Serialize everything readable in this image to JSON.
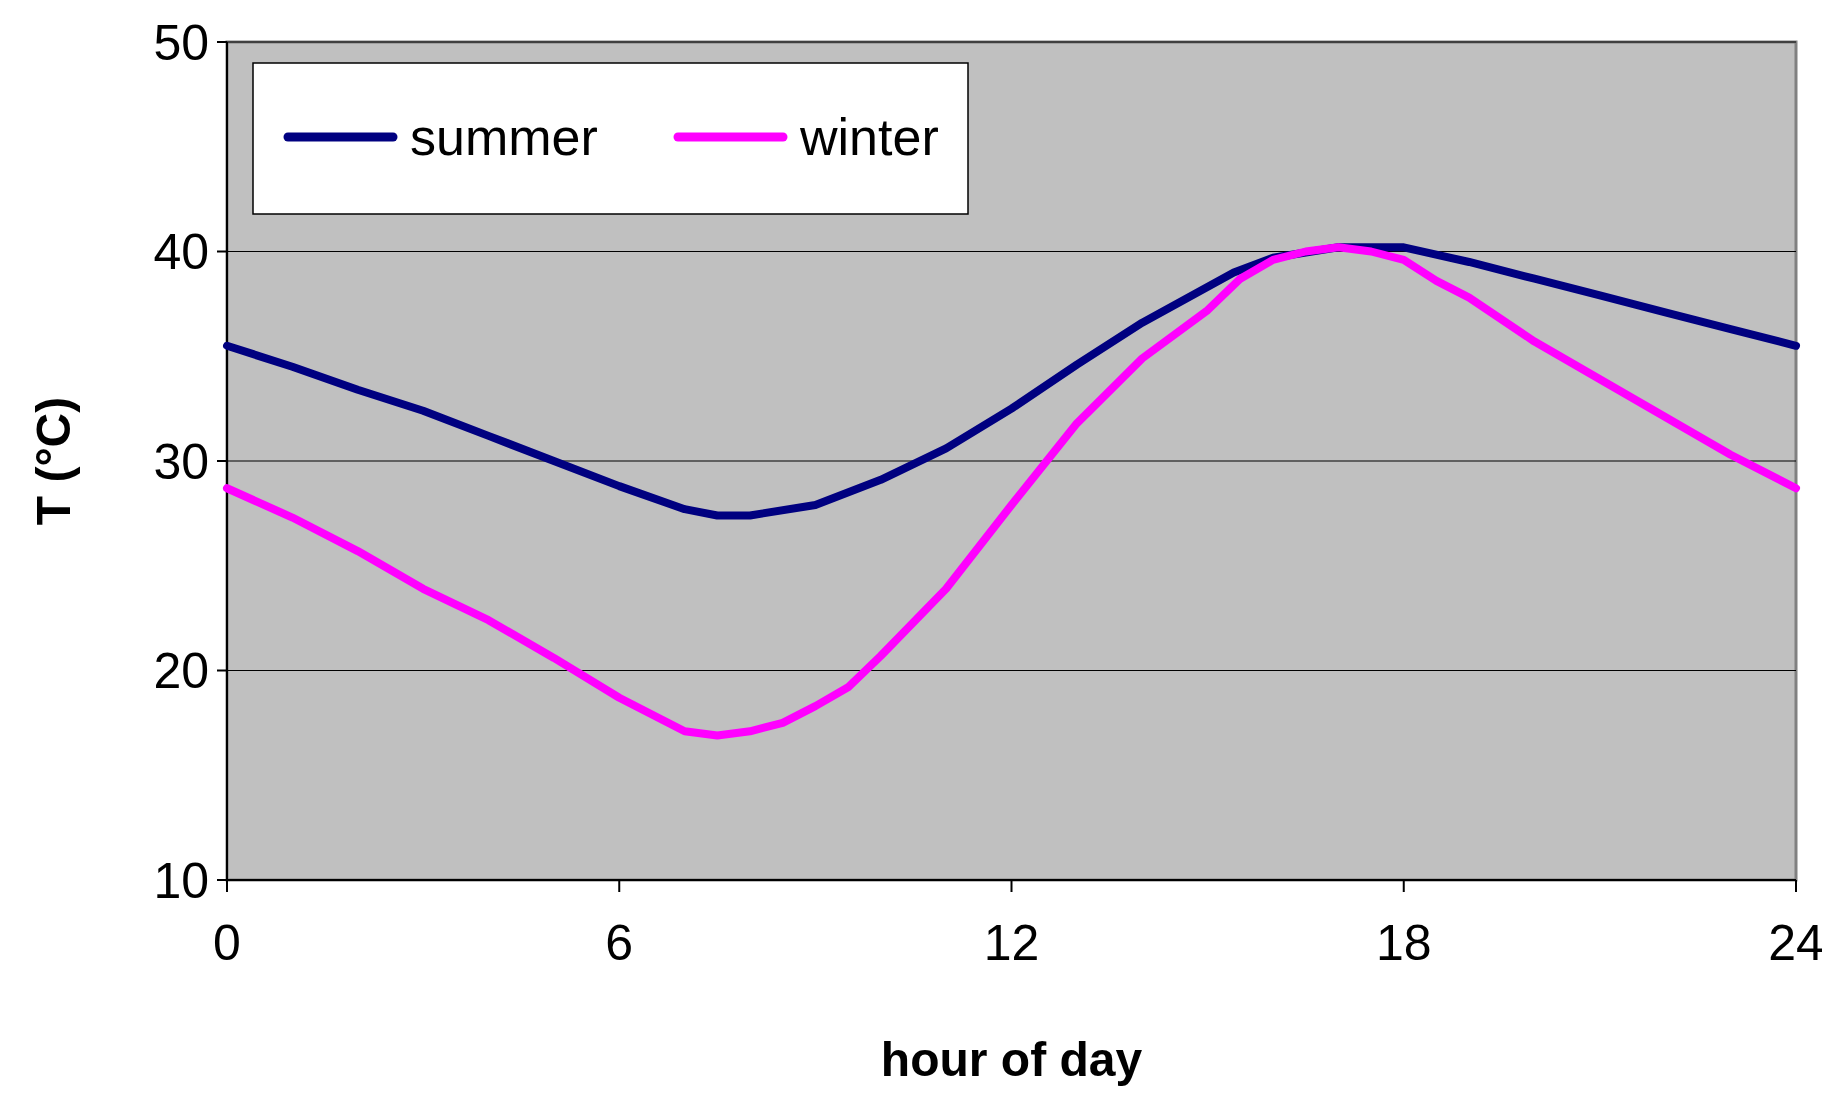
{
  "chart_data": {
    "type": "line",
    "xlabel": "hour of day",
    "ylabel": "T (°C)",
    "xlim": [
      0,
      24
    ],
    "xticks": [
      0,
      6,
      12,
      18,
      24
    ],
    "ylim": [
      10,
      50
    ],
    "yticks": [
      10,
      20,
      30,
      40,
      50
    ],
    "grid": "y",
    "legend": "top left",
    "marker": "none",
    "line_style": "solid",
    "series": [
      {
        "name": "summer",
        "color": "#000080",
        "x": [
          0,
          1,
          2,
          3,
          4,
          5,
          6,
          7,
          7.5,
          8,
          9,
          10,
          11,
          12,
          13,
          14,
          15.4,
          16,
          17,
          18,
          19,
          20,
          21,
          22,
          23,
          24
        ],
        "values": [
          35.5,
          34.5,
          33.4,
          32.4,
          31.2,
          30.0,
          28.8,
          27.7,
          27.4,
          27.4,
          27.9,
          29.1,
          30.6,
          32.5,
          34.6,
          36.6,
          39.0,
          39.7,
          40.2,
          40.2,
          39.5,
          38.7,
          37.9,
          37.1,
          36.3,
          35.5
        ]
      },
      {
        "name": "winter",
        "color": "#ff00ff",
        "x": [
          0,
          1,
          2,
          3,
          4,
          5,
          6,
          6.5,
          7,
          7.5,
          8,
          8.5,
          9,
          9.5,
          10,
          11,
          12,
          13,
          14,
          15,
          15.5,
          16,
          16.5,
          17,
          17.5,
          18,
          18.5,
          19,
          20,
          21,
          22,
          23,
          24
        ],
        "values": [
          28.7,
          27.3,
          25.7,
          23.9,
          22.4,
          20.6,
          18.7,
          17.9,
          17.1,
          16.9,
          17.1,
          17.5,
          18.3,
          19.2,
          20.7,
          23.9,
          27.9,
          31.8,
          34.9,
          37.2,
          38.7,
          39.6,
          40.0,
          40.2,
          40.0,
          39.6,
          38.6,
          37.8,
          35.7,
          33.9,
          32.1,
          30.3,
          28.7
        ]
      }
    ]
  }
}
